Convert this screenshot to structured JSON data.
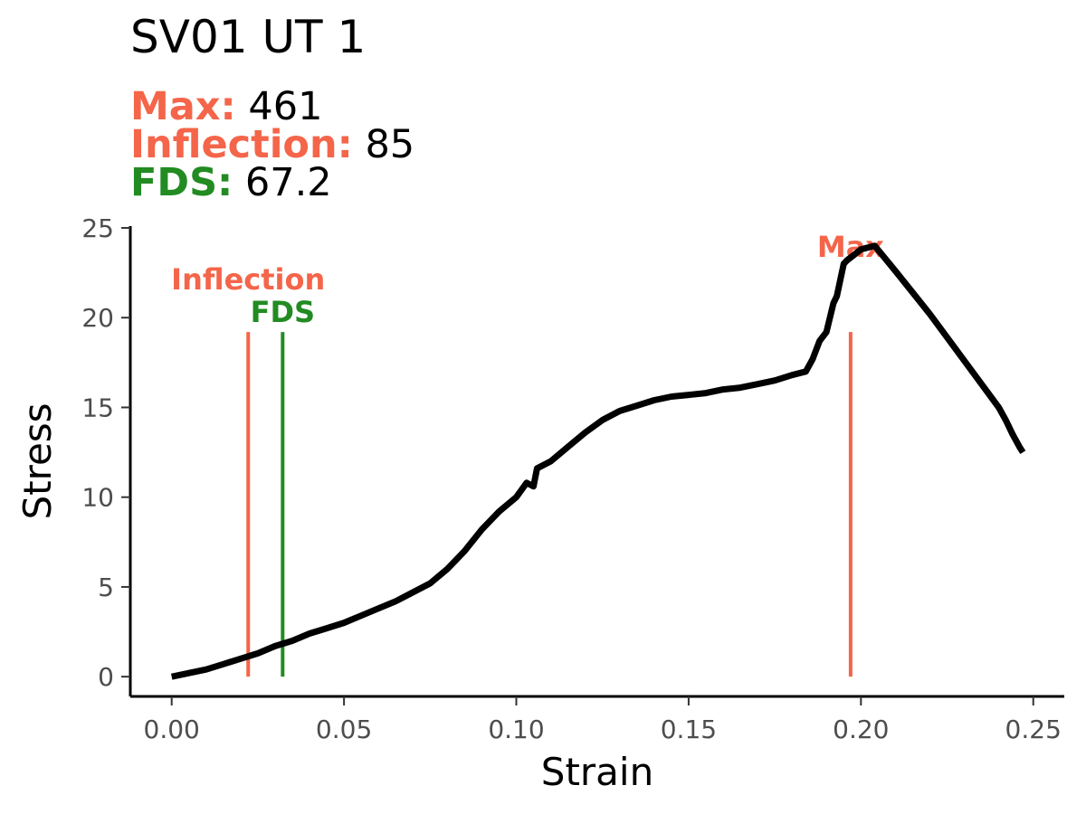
{
  "chart_data": {
    "type": "line",
    "title": "SV01 UT 1",
    "subtitle": [
      {
        "label": "Max:",
        "value": "461",
        "color": "#f4654a"
      },
      {
        "label": "Inflection:",
        "value": "85",
        "color": "#f4654a"
      },
      {
        "label": "FDS:",
        "value": "67.2",
        "color": "#228b22"
      }
    ],
    "xlabel": "Strain",
    "ylabel": "Stress",
    "xlim": [
      -0.012,
      0.259
    ],
    "ylim": [
      -1.1,
      25.1
    ],
    "xticks": [
      "0.00",
      "0.05",
      "0.10",
      "0.15",
      "0.20",
      "0.25"
    ],
    "yticks": [
      "0",
      "5",
      "10",
      "15",
      "20",
      "25"
    ],
    "line_color": "#000000",
    "series": [
      {
        "x": [
          0.0,
          0.005,
          0.01,
          0.015,
          0.02,
          0.025,
          0.03,
          0.035,
          0.04,
          0.045,
          0.05,
          0.055,
          0.06,
          0.065,
          0.07,
          0.075,
          0.08,
          0.085,
          0.09,
          0.095,
          0.1,
          0.103,
          0.105,
          0.106,
          0.11,
          0.115,
          0.12,
          0.125,
          0.13,
          0.135,
          0.14,
          0.145,
          0.15,
          0.155,
          0.16,
          0.165,
          0.17,
          0.175,
          0.18,
          0.184,
          0.186,
          0.188,
          0.19,
          0.192,
          0.193,
          0.195,
          0.196,
          0.198,
          0.2,
          0.204,
          0.21,
          0.22,
          0.23,
          0.24,
          0.242,
          0.244,
          0.246,
          0.247
        ],
        "y": [
          0.0,
          0.2,
          0.4,
          0.7,
          1.0,
          1.3,
          1.7,
          2.0,
          2.4,
          2.7,
          3.0,
          3.4,
          3.8,
          4.2,
          4.7,
          5.2,
          6.0,
          7.0,
          8.2,
          9.2,
          10.0,
          10.8,
          10.6,
          11.6,
          12.0,
          12.8,
          13.6,
          14.3,
          14.8,
          15.1,
          15.4,
          15.6,
          15.7,
          15.8,
          16.0,
          16.1,
          16.3,
          16.5,
          16.8,
          17.0,
          17.7,
          18.7,
          19.2,
          20.8,
          21.2,
          23.0,
          23.2,
          23.5,
          23.8,
          24.0,
          22.6,
          20.2,
          17.6,
          15.0,
          14.3,
          13.5,
          12.8,
          12.5
        ]
      }
    ],
    "markers": [
      {
        "label": "Inflection",
        "x": 0.0222,
        "y_top": 19.2,
        "color": "#f4654a"
      },
      {
        "label": "FDS",
        "x": 0.0322,
        "y_top": 19.2,
        "color": "#228b22"
      },
      {
        "label": "Max",
        "x": 0.197,
        "y_top": 19.2,
        "color": "#f4654a"
      }
    ]
  }
}
